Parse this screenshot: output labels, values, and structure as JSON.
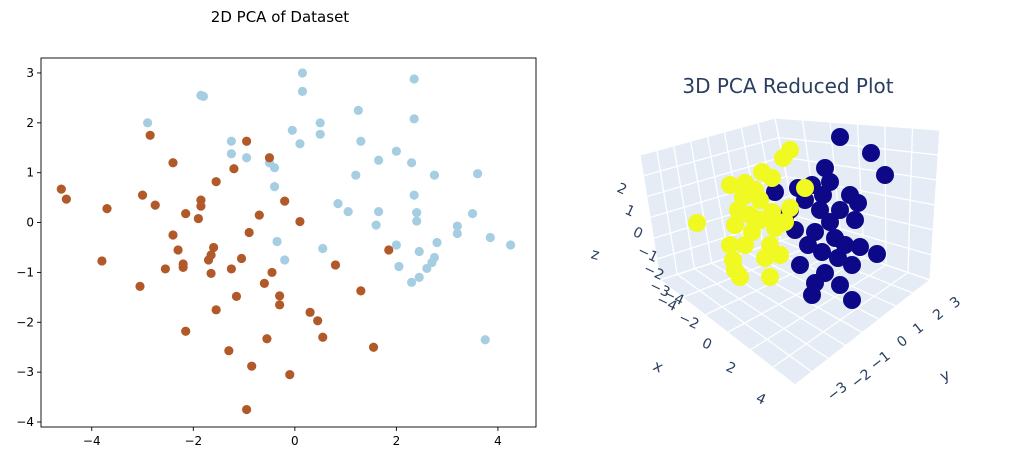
{
  "chart_data": [
    {
      "type": "scatter",
      "title": "2D PCA of Dataset",
      "xlabel": "",
      "ylabel": "",
      "xlim": [
        -5.0,
        4.75
      ],
      "ylim": [
        -4.1,
        3.3
      ],
      "xticks": [
        -4,
        -2,
        0,
        2,
        4
      ],
      "yticks": [
        -4,
        -3,
        -2,
        -1,
        0,
        1,
        2,
        3
      ],
      "grid": false,
      "colors": {
        "cluster_a": "#a6cee3",
        "cluster_b": "#b15928"
      },
      "series": [
        {
          "color": "#a6cee3",
          "points": [
            [
              0.15,
              3.0
            ],
            [
              2.35,
              2.88
            ],
            [
              0.15,
              2.63
            ],
            [
              -1.8,
              2.53
            ],
            [
              -1.85,
              2.55
            ],
            [
              1.25,
              2.25
            ],
            [
              -2.9,
              2.0
            ],
            [
              2.35,
              2.08
            ],
            [
              0.5,
              2.0
            ],
            [
              -0.05,
              1.85
            ],
            [
              0.5,
              1.77
            ],
            [
              1.3,
              1.63
            ],
            [
              -1.25,
              1.63
            ],
            [
              0.1,
              1.58
            ],
            [
              2.0,
              1.43
            ],
            [
              -1.25,
              1.38
            ],
            [
              -0.95,
              1.3
            ],
            [
              -0.5,
              1.2
            ],
            [
              1.65,
              1.25
            ],
            [
              2.3,
              1.2
            ],
            [
              -0.4,
              1.1
            ],
            [
              1.2,
              0.95
            ],
            [
              2.75,
              0.95
            ],
            [
              3.6,
              0.98
            ],
            [
              -0.4,
              0.72
            ],
            [
              2.35,
              0.55
            ],
            [
              0.85,
              0.38
            ],
            [
              2.4,
              0.2
            ],
            [
              1.05,
              0.22
            ],
            [
              1.65,
              0.22
            ],
            [
              3.5,
              0.18
            ],
            [
              2.4,
              0.03
            ],
            [
              3.2,
              -0.07
            ],
            [
              1.6,
              -0.05
            ],
            [
              3.2,
              -0.22
            ],
            [
              3.85,
              -0.3
            ],
            [
              -0.35,
              -0.38
            ],
            [
              2.0,
              -0.45
            ],
            [
              2.8,
              -0.4
            ],
            [
              4.25,
              -0.45
            ],
            [
              0.55,
              -0.52
            ],
            [
              2.45,
              -0.58
            ],
            [
              -0.2,
              -0.75
            ],
            [
              2.75,
              -0.7
            ],
            [
              2.05,
              -0.88
            ],
            [
              2.7,
              -0.8
            ],
            [
              2.6,
              -0.92
            ],
            [
              2.3,
              -1.2
            ],
            [
              2.45,
              -1.1
            ],
            [
              3.75,
              -2.35
            ]
          ]
        },
        {
          "color": "#b15928",
          "points": [
            [
              -2.85,
              1.75
            ],
            [
              -0.95,
              1.63
            ],
            [
              -0.5,
              1.3
            ],
            [
              -2.4,
              1.2
            ],
            [
              -1.2,
              1.08
            ],
            [
              -1.55,
              0.82
            ],
            [
              -4.6,
              0.67
            ],
            [
              -4.5,
              0.47
            ],
            [
              -3.0,
              0.55
            ],
            [
              -1.85,
              0.45
            ],
            [
              -0.2,
              0.43
            ],
            [
              -1.85,
              0.33
            ],
            [
              -3.7,
              0.28
            ],
            [
              -2.75,
              0.35
            ],
            [
              -2.15,
              0.18
            ],
            [
              -0.7,
              0.15
            ],
            [
              -1.9,
              0.08
            ],
            [
              0.1,
              0.02
            ],
            [
              -0.9,
              -0.2
            ],
            [
              -2.4,
              -0.25
            ],
            [
              -2.3,
              -0.55
            ],
            [
              -1.6,
              -0.5
            ],
            [
              -1.65,
              -0.65
            ],
            [
              -1.7,
              -0.75
            ],
            [
              -1.05,
              -0.72
            ],
            [
              -3.8,
              -0.77
            ],
            [
              -2.2,
              -0.83
            ],
            [
              -2.2,
              -0.9
            ],
            [
              -2.55,
              -0.93
            ],
            [
              -1.25,
              -0.93
            ],
            [
              -1.65,
              -1.02
            ],
            [
              -0.45,
              -1.0
            ],
            [
              0.8,
              -0.85
            ],
            [
              1.85,
              -0.55
            ],
            [
              -0.6,
              -1.22
            ],
            [
              -3.05,
              -1.28
            ],
            [
              1.3,
              -1.37
            ],
            [
              -1.15,
              -1.48
            ],
            [
              -0.3,
              -1.47
            ],
            [
              -0.3,
              -1.65
            ],
            [
              -1.55,
              -1.75
            ],
            [
              0.3,
              -1.8
            ],
            [
              0.45,
              -1.97
            ],
            [
              -2.15,
              -2.18
            ],
            [
              0.55,
              -2.3
            ],
            [
              -0.55,
              -2.33
            ],
            [
              1.55,
              -2.5
            ],
            [
              -1.3,
              -2.57
            ],
            [
              -0.85,
              -2.88
            ],
            [
              -0.1,
              -3.05
            ],
            [
              -0.95,
              -3.75
            ]
          ]
        }
      ]
    },
    {
      "type": "scatter",
      "title": "3D PCA Reduced Plot",
      "axes": {
        "x": {
          "label": "x",
          "range": [
            -4,
            4
          ],
          "ticks": [
            "−4",
            "−2",
            "0",
            "2",
            "4"
          ]
        },
        "y": {
          "label": "y",
          "range": [
            -3,
            3
          ],
          "ticks": [
            "−3",
            "−2",
            "−1",
            "0",
            "1",
            "2",
            "3"
          ]
        },
        "z": {
          "label": "z",
          "range": [
            -4,
            2
          ],
          "ticks": [
            "2",
            "1",
            "0",
            "−1",
            "−2",
            "−3",
            "−4"
          ]
        }
      },
      "grid": true,
      "colors": {
        "cluster_a": "#0d0887",
        "cluster_b": "#f0f921",
        "scene_bg": "#e5ecf6",
        "grid": "#ffffff",
        "text": "#2a3f5f"
      }
    }
  ]
}
